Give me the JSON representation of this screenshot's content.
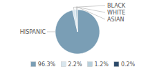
{
  "chart_data": {
    "type": "pie",
    "categories": [
      "HISPANIC",
      "BLACK",
      "WHITE",
      "ASIAN"
    ],
    "values": [
      96.3,
      2.2,
      1.2,
      0.2
    ],
    "value_labels": [
      "96.3%",
      "2.2%",
      "1.2%",
      "0.2%"
    ],
    "colors": [
      "#7a9eb5",
      "#d8e6ee",
      "#b8cfdc",
      "#2c4a6a"
    ],
    "legend": "bottom"
  }
}
